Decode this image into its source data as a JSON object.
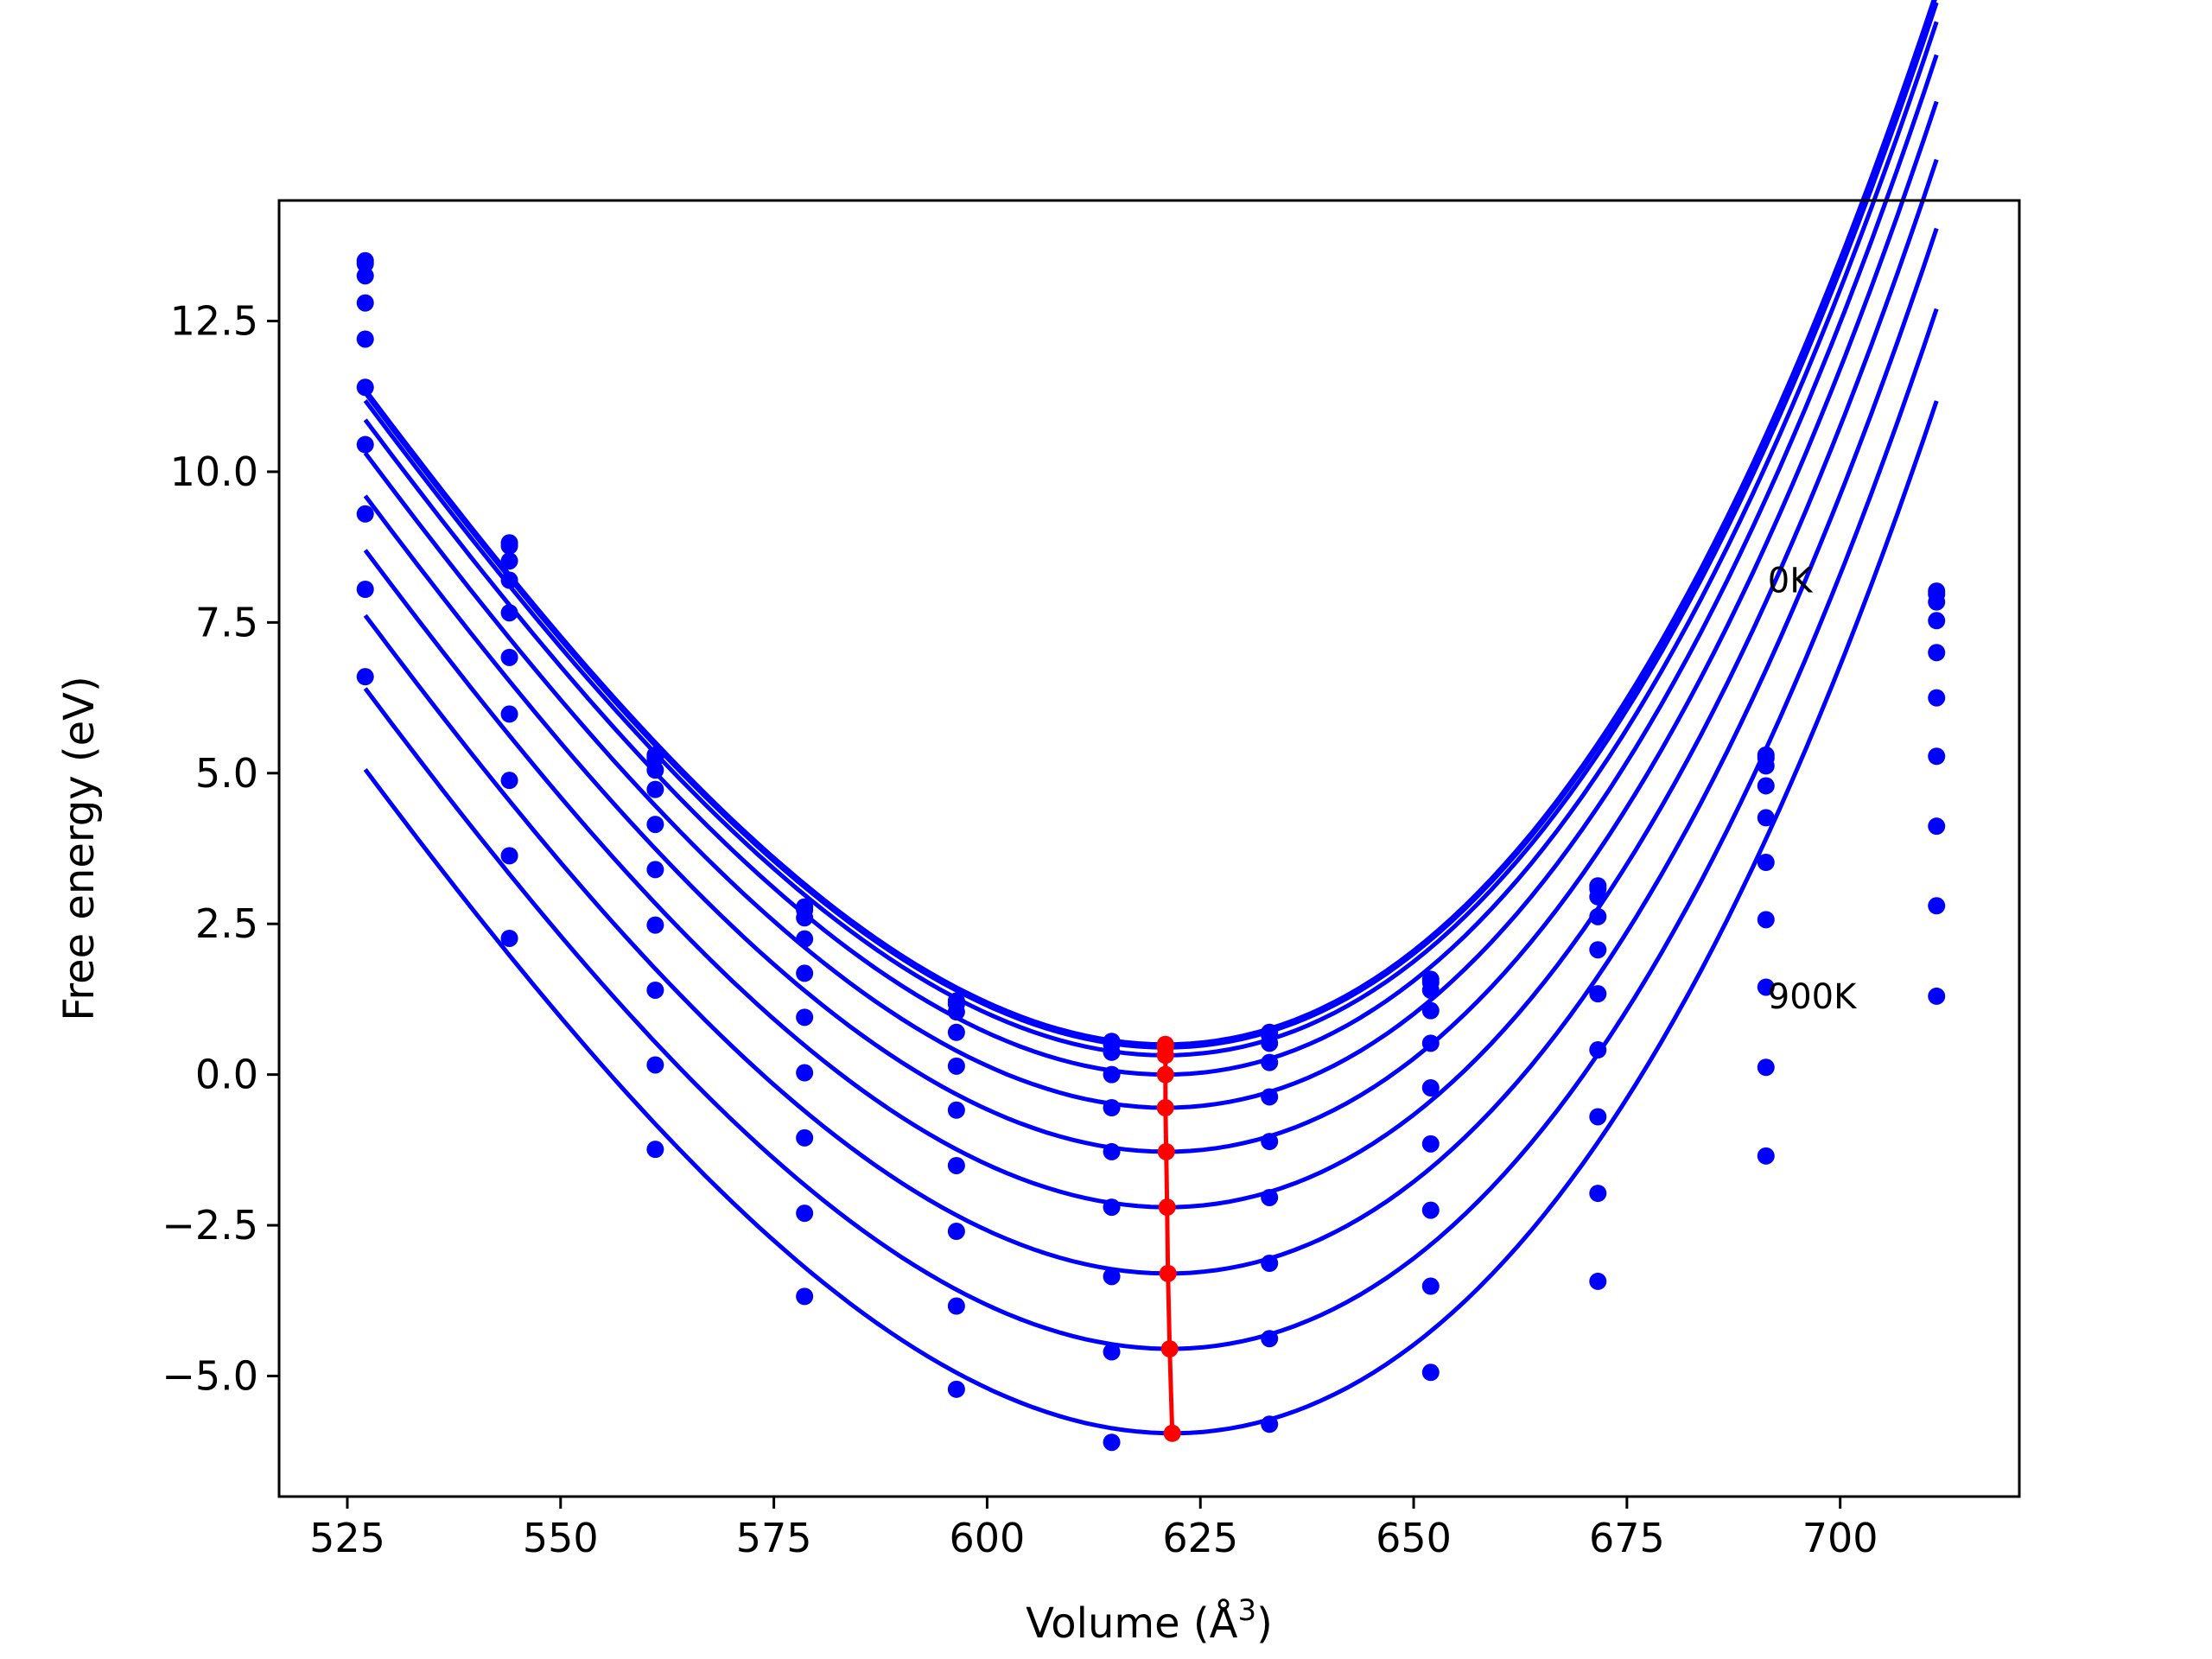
{
  "chart_data": {
    "type": "line",
    "xlabel": "Volume (Å",
    "xlabel_sup": "3",
    "xlabel_end": ")",
    "ylabel": "Free energy (eV)",
    "xlim": [
      517,
      721
    ],
    "ylim": [
      -7.0,
      14.5
    ],
    "x_ticks": [
      525,
      550,
      575,
      600,
      625,
      650,
      675,
      700
    ],
    "y_ticks": [
      -5.0,
      -2.5,
      0.0,
      2.5,
      5.0,
      7.5,
      10.0,
      12.5
    ],
    "grid": false,
    "annotations": [
      {
        "text": "0K",
        "x": 691.5,
        "y": 8.0
      },
      {
        "text": "900K",
        "x": 691.5,
        "y": 1.1
      }
    ],
    "colors": {
      "curves": "#0000ff",
      "equilibrium": "#ff0000"
    },
    "x_points": [
      527.1,
      544.0,
      561.1,
      578.6,
      596.4,
      614.6,
      633.1,
      652.0,
      671.6,
      691.3,
      711.3
    ],
    "series": [
      {
        "E0": 0.5,
        "V0": 620.9,
        "a": 0.001694,
        "c": 4.9e-06,
        "points": [
          13.5,
          8.82,
          5.3,
          2.78,
          1.22,
          0.55,
          0.7,
          1.58,
          3.13,
          5.3,
          8.02
        ]
      },
      {
        "E0": 0.45,
        "V0": 620.9,
        "a": 0.001694,
        "c": 4.9e-06,
        "points": [
          13.45,
          8.77,
          5.25,
          2.73,
          1.17,
          0.5,
          0.65,
          1.53,
          3.08,
          5.25,
          7.97
        ]
      },
      {
        "E0": 0.32,
        "V0": 620.9,
        "a": 0.001694,
        "c": 4.9e-06,
        "points": [
          13.25,
          8.52,
          5.05,
          2.6,
          1.04,
          0.37,
          0.52,
          1.4,
          2.95,
          5.12,
          7.84
        ]
      },
      {
        "E0": 0.0,
        "V0": 620.9,
        "a": 0.001694,
        "c": 4.9e-06,
        "points": [
          12.8,
          8.2,
          4.73,
          2.25,
          0.7,
          0.0,
          0.2,
          1.06,
          2.62,
          4.79,
          7.53
        ]
      },
      {
        "E0": -0.55,
        "V0": 620.9,
        "a": 0.001694,
        "c": 4.9e-06,
        "points": [
          12.2,
          7.66,
          4.15,
          1.68,
          0.14,
          -0.55,
          -0.37,
          0.52,
          2.07,
          4.26,
          7.0
        ]
      },
      {
        "E0": -1.28,
        "V0": 621.0,
        "a": 0.001694,
        "c": 4.9e-06,
        "points": [
          11.4,
          6.92,
          3.4,
          0.95,
          -0.59,
          -1.28,
          -1.11,
          -0.22,
          1.34,
          3.52,
          6.25
        ]
      },
      {
        "E0": -2.2,
        "V0": 621.1,
        "a": 0.001694,
        "c": 4.9e-06,
        "points": [
          10.45,
          5.98,
          2.48,
          0.03,
          -1.51,
          -2.2,
          -2.04,
          -1.15,
          0.41,
          2.57,
          5.28
        ]
      },
      {
        "E0": -3.3,
        "V0": 621.2,
        "a": 0.001694,
        "c": 4.9e-06,
        "points": [
          9.3,
          4.88,
          1.4,
          -1.05,
          -2.6,
          -3.35,
          -3.13,
          -2.25,
          -0.7,
          1.45,
          4.12
        ]
      },
      {
        "E0": -4.55,
        "V0": 621.4,
        "a": 0.001694,
        "c": 4.9e-06,
        "points": [
          8.05,
          3.63,
          0.16,
          -2.3,
          -3.84,
          -4.6,
          -4.38,
          -3.51,
          -1.97,
          0.12,
          2.8
        ]
      },
      {
        "E0": -5.95,
        "V0": 621.7,
        "a": 0.001694,
        "c": 4.9e-06,
        "points": [
          6.6,
          2.26,
          -1.24,
          -3.68,
          -5.22,
          -6.1,
          -5.8,
          -4.94,
          -3.43,
          -1.35,
          1.3
        ]
      }
    ],
    "minima_line": {
      "x": [
        620.9,
        620.9,
        620.9,
        620.9,
        620.9,
        621.0,
        621.1,
        621.2,
        621.4,
        621.7
      ],
      "y": [
        0.5,
        0.45,
        0.32,
        0.0,
        -0.55,
        -1.28,
        -2.2,
        -3.3,
        -4.55,
        -5.95
      ]
    }
  }
}
